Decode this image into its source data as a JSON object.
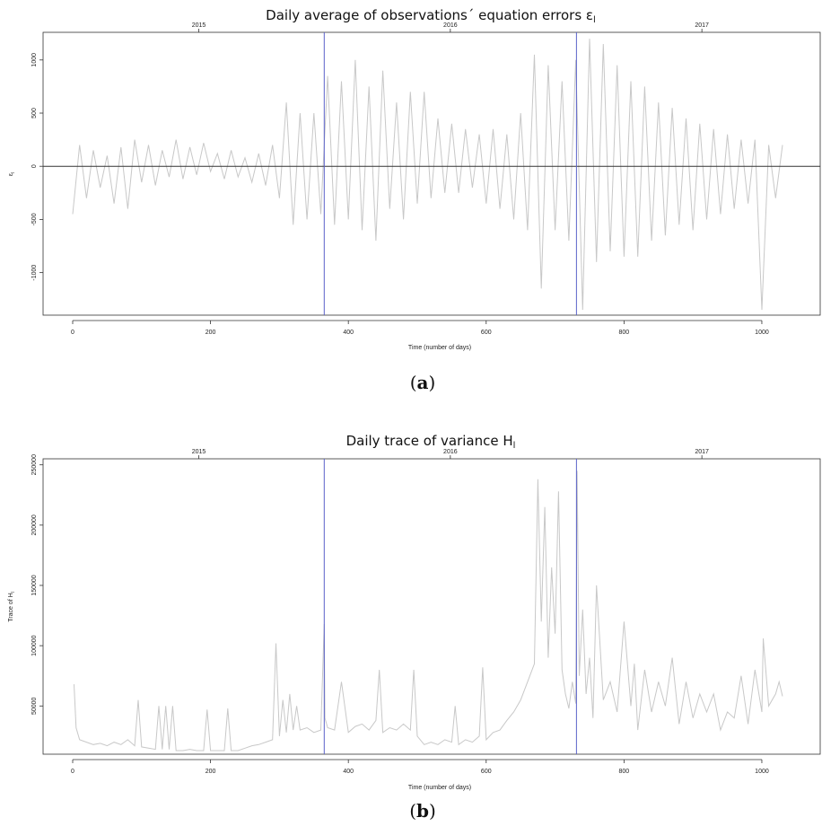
{
  "chart_data": [
    {
      "type": "line",
      "title": "Daily average of observations´ equation errors ε",
      "title_subscript": "l",
      "xlabel": "Time (number of days)",
      "ylabel": "ε",
      "ylabel_subscript": "l",
      "caption_letter": "a",
      "xlim": [
        0,
        1030
      ],
      "ylim": [
        -1400,
        1260
      ],
      "x_ticks": [
        0,
        200,
        400,
        600,
        800,
        1000
      ],
      "x_tick_labels": [
        "0",
        "200",
        "400",
        "600",
        "800",
        "1000"
      ],
      "y_ticks": [
        -1000,
        -500,
        0,
        500,
        1000
      ],
      "y_tick_labels": [
        "-1000",
        "-500",
        "0",
        "500",
        "1000"
      ],
      "top_axis": {
        "ticks": [
          183,
          548,
          913
        ],
        "labels": [
          "2015",
          "2016",
          "2017"
        ]
      },
      "reference_line_y": 0,
      "vertical_lines_x": [
        365,
        731
      ],
      "colors": {
        "series": "#c8c8c8",
        "vlines": "#5b62c9",
        "hline": "#333333"
      },
      "series": [
        {
          "x": [
            0,
            10,
            20,
            30,
            40,
            50,
            60,
            70,
            80,
            90,
            100,
            110,
            120,
            130,
            140,
            150,
            160,
            170,
            180,
            190,
            200,
            210,
            220,
            230,
            240,
            250,
            260,
            270,
            280,
            290,
            300,
            310,
            320,
            330,
            340,
            350,
            360,
            370,
            380,
            390,
            400,
            410,
            420,
            430,
            440,
            450,
            460,
            470,
            480,
            490,
            500,
            510,
            520,
            530,
            540,
            550,
            560,
            570,
            580,
            590,
            600,
            610,
            620,
            630,
            640,
            650,
            660,
            670,
            680,
            690,
            700,
            710,
            720,
            730,
            740,
            750,
            760,
            770,
            780,
            790,
            800,
            810,
            820,
            830,
            840,
            850,
            860,
            870,
            880,
            890,
            900,
            910,
            920,
            930,
            940,
            950,
            960,
            970,
            980,
            990,
            1000,
            1010,
            1020,
            1030
          ],
          "values": [
            -450,
            200,
            -300,
            150,
            -200,
            100,
            -350,
            180,
            -400,
            250,
            -150,
            200,
            -180,
            150,
            -100,
            250,
            -120,
            180,
            -80,
            220,
            -50,
            120,
            -120,
            150,
            -100,
            80,
            -150,
            120,
            -180,
            200,
            -300,
            600,
            -550,
            500,
            -500,
            500,
            -450,
            850,
            -550,
            800,
            -500,
            1000,
            -600,
            750,
            -700,
            900,
            -400,
            600,
            -500,
            700,
            -350,
            700,
            -300,
            450,
            -250,
            400,
            -250,
            350,
            -200,
            300,
            -350,
            350,
            -400,
            300,
            -500,
            500,
            -600,
            1050,
            -1150,
            950,
            -600,
            800,
            -700,
            1000,
            -1350,
            1200,
            -900,
            1150,
            -800,
            950,
            -850,
            800,
            -850,
            750,
            -700,
            600,
            -650,
            550,
            -550,
            450,
            -600,
            400,
            -500,
            350,
            -450,
            300,
            -400,
            250,
            -350,
            250,
            -1350,
            200,
            -300,
            200
          ]
        }
      ]
    },
    {
      "type": "line",
      "title": "Daily trace of variance H",
      "title_subscript": "l",
      "xlabel": "Time (number of days)",
      "ylabel": "Trace of H",
      "ylabel_subscript": "l",
      "caption_letter": "b",
      "xlim": [
        0,
        1030
      ],
      "ylim": [
        10000,
        255000
      ],
      "x_ticks": [
        0,
        200,
        400,
        600,
        800,
        1000
      ],
      "x_tick_labels": [
        "0",
        "200",
        "400",
        "600",
        "800",
        "1000"
      ],
      "y_ticks": [
        50000,
        100000,
        150000,
        200000,
        250000
      ],
      "y_tick_labels": [
        "50000",
        "100000",
        "150000",
        "200000",
        "250000"
      ],
      "top_axis": {
        "ticks": [
          183,
          548,
          913
        ],
        "labels": [
          "2015",
          "2016",
          "2017"
        ]
      },
      "vertical_lines_x": [
        365,
        731
      ],
      "colors": {
        "series": "#c8c8c8",
        "vlines": "#5b62c9"
      },
      "series": [
        {
          "x": [
            2,
            5,
            10,
            20,
            30,
            40,
            50,
            60,
            70,
            80,
            90,
            95,
            100,
            110,
            120,
            125,
            130,
            135,
            140,
            145,
            150,
            160,
            170,
            180,
            190,
            195,
            200,
            210,
            220,
            225,
            230,
            240,
            250,
            260,
            270,
            280,
            290,
            295,
            300,
            305,
            310,
            315,
            320,
            325,
            330,
            340,
            350,
            360,
            365,
            366,
            370,
            380,
            390,
            400,
            410,
            420,
            430,
            440,
            445,
            450,
            460,
            470,
            480,
            490,
            495,
            500,
            510,
            520,
            530,
            540,
            550,
            555,
            560,
            570,
            580,
            590,
            595,
            600,
            610,
            620,
            630,
            640,
            650,
            660,
            670,
            675,
            680,
            685,
            690,
            695,
            700,
            705,
            710,
            715,
            720,
            725,
            730,
            732,
            735,
            740,
            745,
            750,
            755,
            760,
            770,
            780,
            790,
            800,
            810,
            815,
            820,
            830,
            840,
            850,
            860,
            870,
            880,
            890,
            900,
            910,
            920,
            930,
            940,
            950,
            960,
            970,
            980,
            990,
            1000,
            1002,
            1010,
            1020,
            1025,
            1030
          ],
          "values": [
            68000,
            32000,
            22000,
            20000,
            18000,
            19000,
            17000,
            20000,
            18000,
            22000,
            17000,
            55000,
            16000,
            15000,
            14000,
            50000,
            14000,
            50000,
            14000,
            50000,
            13000,
            13000,
            14000,
            13000,
            13000,
            47000,
            13000,
            13000,
            13000,
            48000,
            13000,
            13000,
            15000,
            17000,
            18000,
            20000,
            22000,
            102000,
            25000,
            55000,
            28000,
            60000,
            30000,
            50000,
            30000,
            32000,
            28000,
            30000,
            118000,
            40000,
            32000,
            30000,
            70000,
            28000,
            33000,
            35000,
            30000,
            38000,
            80000,
            28000,
            32000,
            30000,
            35000,
            30000,
            80000,
            25000,
            18000,
            20000,
            18000,
            22000,
            20000,
            50000,
            18000,
            22000,
            20000,
            25000,
            82000,
            22000,
            28000,
            30000,
            38000,
            45000,
            55000,
            70000,
            85000,
            238000,
            120000,
            215000,
            90000,
            165000,
            110000,
            228000,
            80000,
            60000,
            48000,
            70000,
            52000,
            245000,
            75000,
            130000,
            60000,
            90000,
            40000,
            150000,
            55000,
            70000,
            45000,
            120000,
            50000,
            85000,
            30000,
            80000,
            45000,
            70000,
            50000,
            90000,
            35000,
            70000,
            40000,
            60000,
            45000,
            60000,
            30000,
            45000,
            40000,
            75000,
            35000,
            80000,
            45000,
            106000,
            50000,
            60000,
            70000,
            58000
          ]
        }
      ]
    }
  ]
}
